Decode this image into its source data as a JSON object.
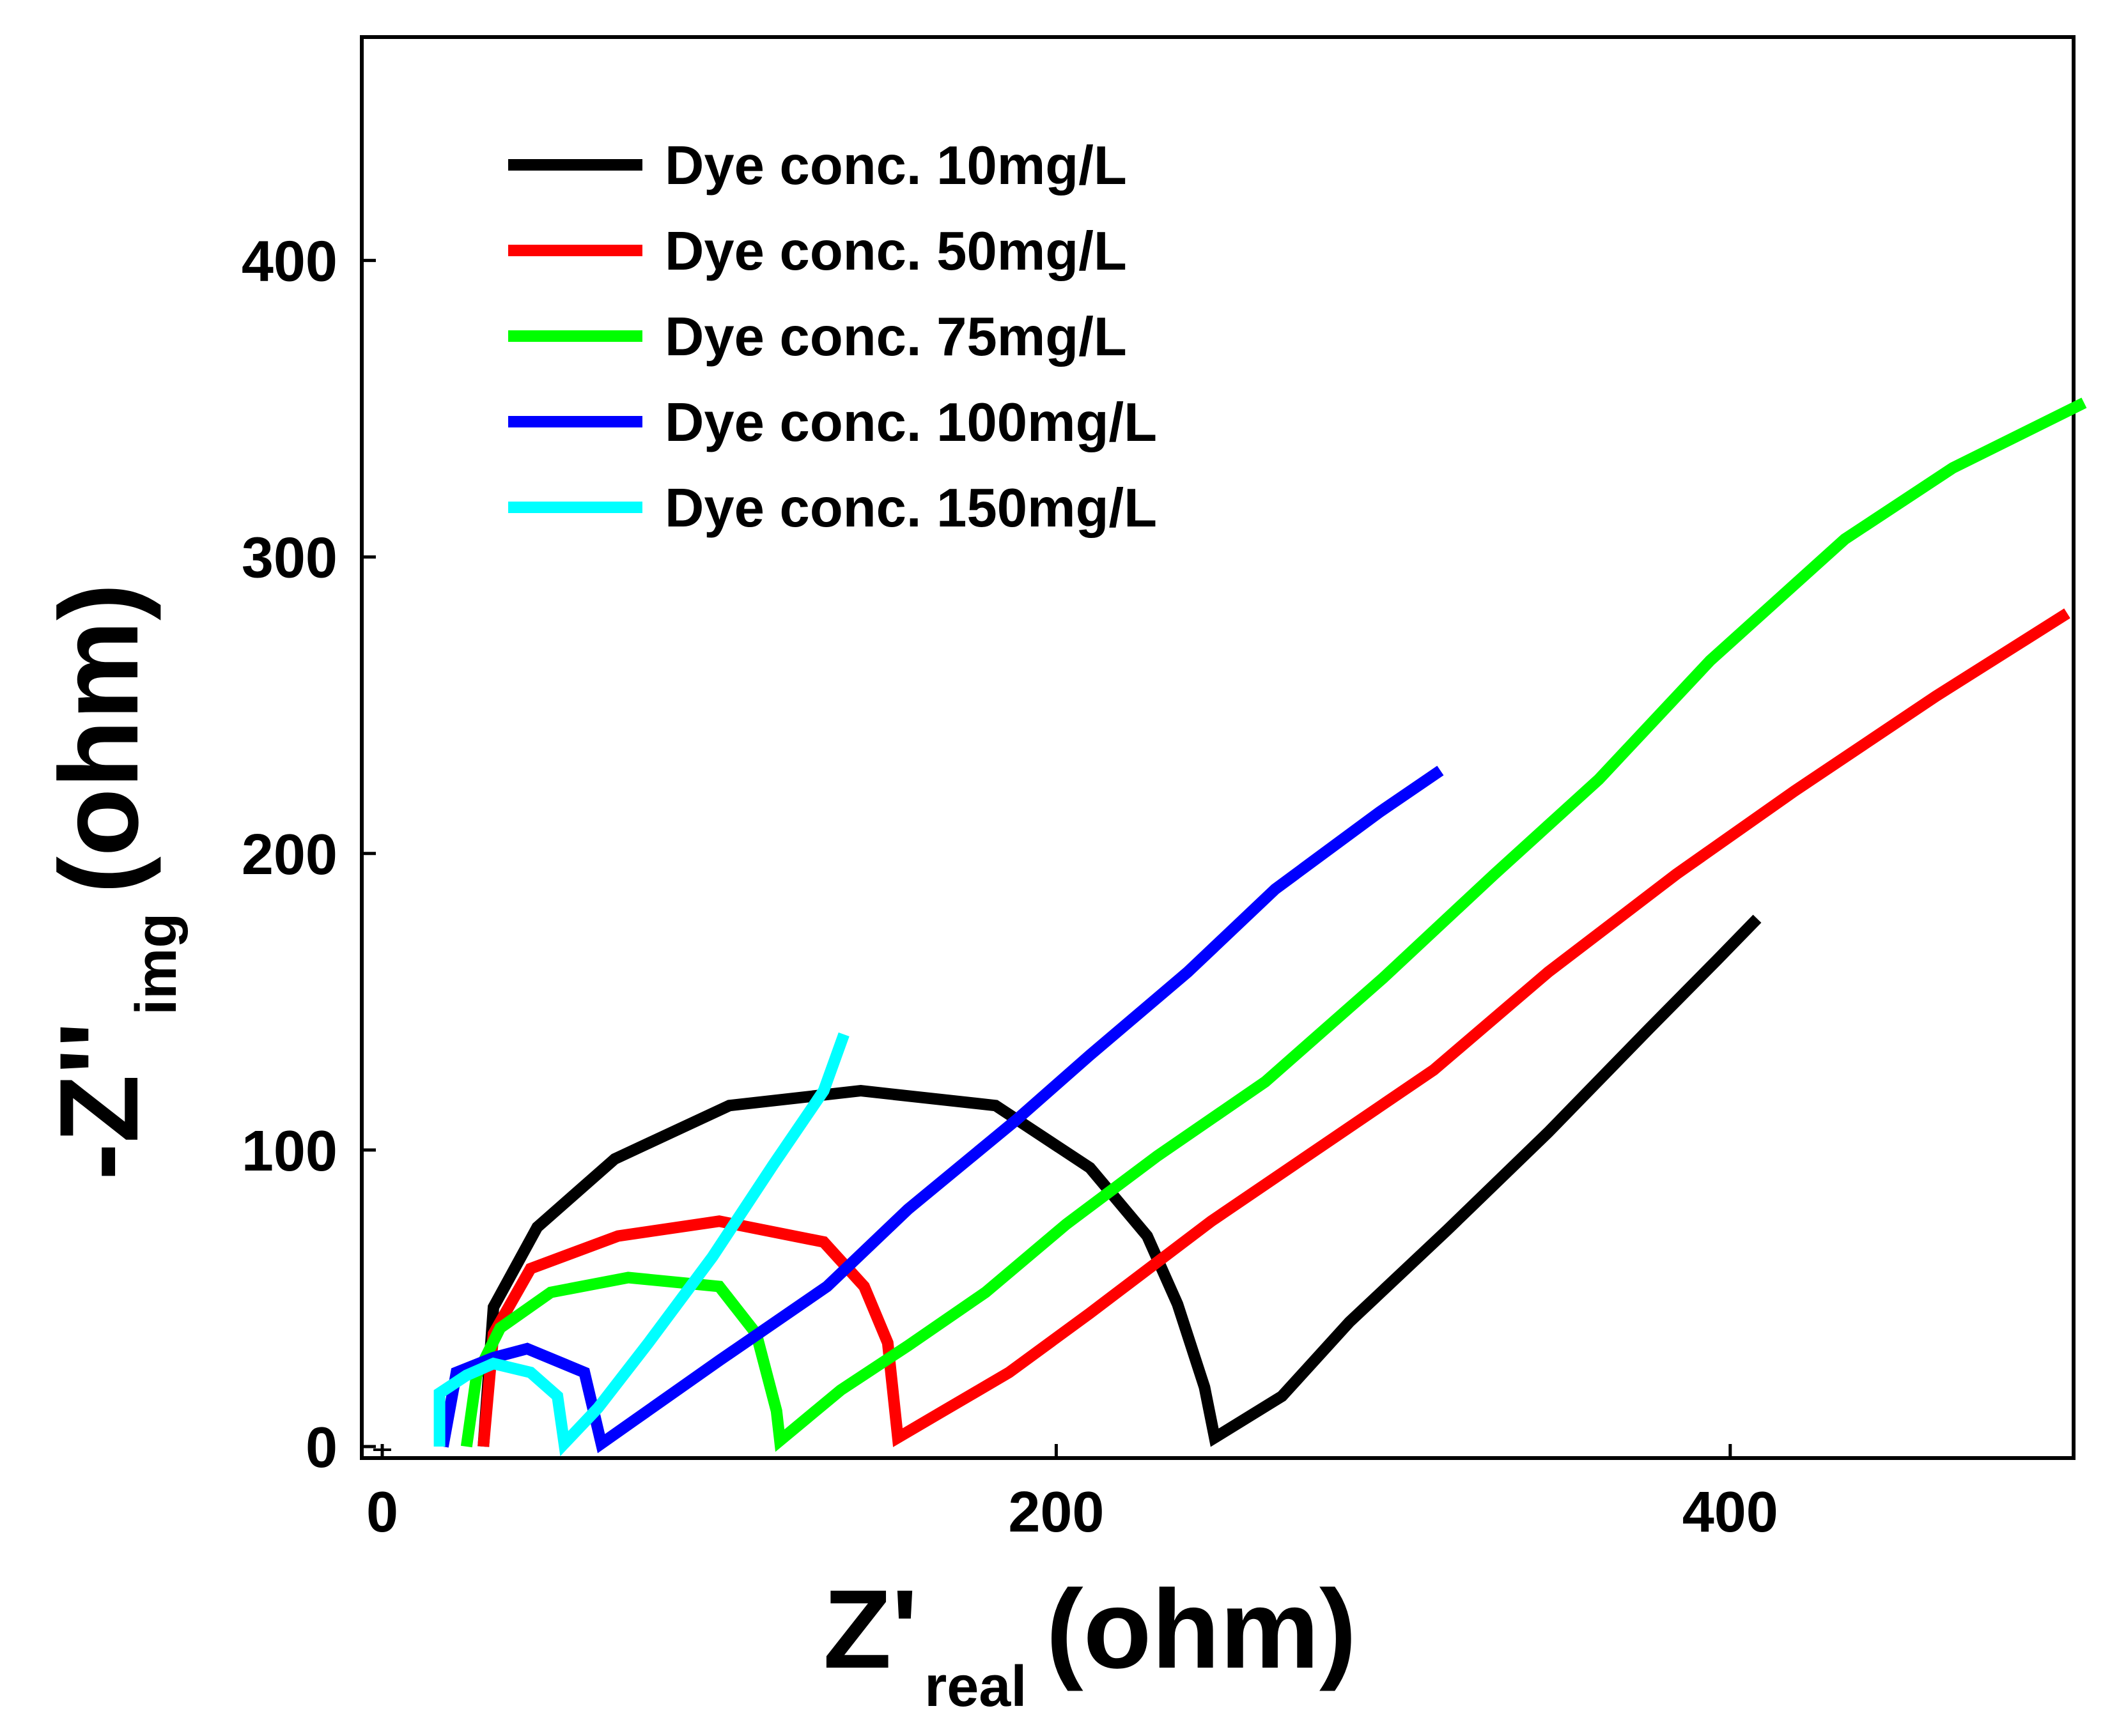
{
  "chart_data": {
    "type": "line",
    "title": "",
    "xlabel": {
      "main": "Z'",
      "sub": "real",
      "unit": "(ohm)"
    },
    "ylabel": {
      "main": "-Z''",
      "sub": "img",
      "unit": "(ohm)"
    },
    "xlim": [
      -5,
      505
    ],
    "ylim": [
      -5,
      475
    ],
    "x_ticks": [
      0,
      200,
      400
    ],
    "y_ticks": [
      0,
      100,
      200,
      300,
      400
    ],
    "x_tick_labels": [
      "0",
      "200",
      "400"
    ],
    "y_tick_labels": [
      "0",
      "100",
      "200",
      "300",
      "400"
    ],
    "grid": false,
    "legend_position": "top-left",
    "series": [
      {
        "name": "Dye conc. 10mg/L",
        "color": "#000000",
        "points": [
          [
            30,
            0
          ],
          [
            33,
            47
          ],
          [
            46,
            74
          ],
          [
            69,
            97
          ],
          [
            103,
            115
          ],
          [
            142,
            120
          ],
          [
            182,
            115
          ],
          [
            210,
            94
          ],
          [
            227,
            71
          ],
          [
            236,
            48
          ],
          [
            244,
            20
          ],
          [
            247,
            3
          ],
          [
            267,
            17
          ],
          [
            287,
            42
          ],
          [
            316,
            73
          ],
          [
            346,
            106
          ],
          [
            376,
            141
          ],
          [
            396,
            164
          ],
          [
            408,
            178
          ]
        ]
      },
      {
        "name": "Dye conc. 50mg/L",
        "color": "#ff0000",
        "points": [
          [
            30,
            0
          ],
          [
            33,
            38
          ],
          [
            44,
            60
          ],
          [
            70,
            71
          ],
          [
            100,
            76
          ],
          [
            131,
            69
          ],
          [
            143,
            54
          ],
          [
            150,
            35
          ],
          [
            153,
            3
          ],
          [
            165,
            11
          ],
          [
            186,
            25
          ],
          [
            210,
            45
          ],
          [
            246,
            76
          ],
          [
            312,
            127
          ],
          [
            346,
            160
          ],
          [
            384,
            193
          ],
          [
            419,
            221
          ],
          [
            461,
            253
          ],
          [
            500,
            281
          ]
        ]
      },
      {
        "name": "Dye conc. 75mg/L",
        "color": "#00ff00",
        "points": [
          [
            25,
            0
          ],
          [
            28,
            24
          ],
          [
            35,
            40
          ],
          [
            50,
            52
          ],
          [
            73,
            57
          ],
          [
            100,
            54
          ],
          [
            111,
            38
          ],
          [
            117,
            12
          ],
          [
            118,
            2
          ],
          [
            136,
            19
          ],
          [
            156,
            34
          ],
          [
            179,
            52
          ],
          [
            203,
            75
          ],
          [
            230,
            98
          ],
          [
            262,
            123
          ],
          [
            297,
            158
          ],
          [
            330,
            193
          ],
          [
            361,
            225
          ],
          [
            394,
            265
          ],
          [
            434,
            306
          ],
          [
            466,
            330
          ],
          [
            505,
            352
          ]
        ]
      },
      {
        "name": "Dye conc. 100mg/L",
        "color": "#0000ff",
        "points": [
          [
            18,
            0
          ],
          [
            22,
            25
          ],
          [
            33,
            30
          ],
          [
            43,
            33
          ],
          [
            60,
            25
          ],
          [
            65,
            1
          ],
          [
            75,
            9
          ],
          [
            100,
            29
          ],
          [
            132,
            54
          ],
          [
            156,
            80
          ],
          [
            188,
            110
          ],
          [
            210,
            132
          ],
          [
            239,
            160
          ],
          [
            265,
            188
          ],
          [
            296,
            214
          ],
          [
            314,
            228
          ]
        ]
      },
      {
        "name": "Dye conc. 150mg/L",
        "color": "#00ffff",
        "points": [
          [
            17,
            0
          ],
          [
            17,
            18
          ],
          [
            25,
            24
          ],
          [
            33,
            28
          ],
          [
            44,
            25
          ],
          [
            52,
            17
          ],
          [
            54,
            1
          ],
          [
            64,
            13
          ],
          [
            79,
            35
          ],
          [
            98,
            64
          ],
          [
            116,
            95
          ],
          [
            131,
            120
          ],
          [
            137,
            139
          ]
        ]
      }
    ]
  }
}
